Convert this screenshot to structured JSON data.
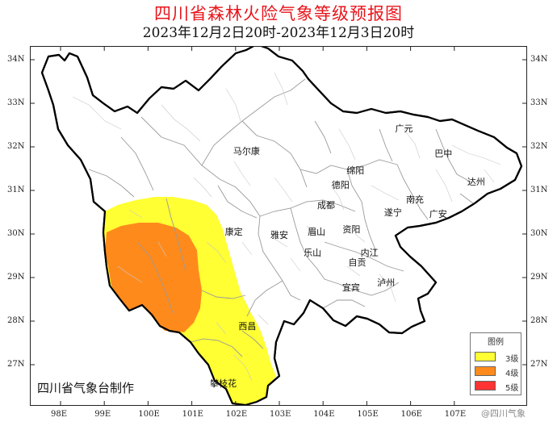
{
  "title": "四川省森林火险气象等级预报图",
  "subtitle": "2023年12月2日20时-2023年12月3日20时",
  "credit": "四川省气象台制作",
  "watermark": "@四川气象",
  "legend": {
    "title": "图例",
    "items": [
      {
        "label": "3级",
        "color": "#ffff33"
      },
      {
        "label": "4级",
        "color": "#ff8a1c"
      },
      {
        "label": "5级",
        "color": "#ff3333"
      }
    ]
  },
  "axes": {
    "lat_labels": [
      "34N",
      "33N",
      "32N",
      "31N",
      "30N",
      "29N",
      "28N",
      "27N"
    ],
    "lon_labels": [
      "98E",
      "99E",
      "100E",
      "101E",
      "102E",
      "103E",
      "104E",
      "105E",
      "106E",
      "107E"
    ]
  },
  "cities": [
    {
      "name": "马尔康",
      "lon": 102.25,
      "lat": 31.9
    },
    {
      "name": "广元",
      "lon": 105.85,
      "lat": 32.43
    },
    {
      "name": "巴中",
      "lon": 106.75,
      "lat": 31.85
    },
    {
      "name": "绵阳",
      "lon": 104.74,
      "lat": 31.46
    },
    {
      "name": "德阳",
      "lon": 104.4,
      "lat": 31.13
    },
    {
      "name": "达州",
      "lon": 107.5,
      "lat": 31.2
    },
    {
      "name": "南充",
      "lon": 106.1,
      "lat": 30.8
    },
    {
      "name": "成都",
      "lon": 104.07,
      "lat": 30.67
    },
    {
      "name": "遂宁",
      "lon": 105.6,
      "lat": 30.5
    },
    {
      "name": "广安",
      "lon": 106.63,
      "lat": 30.46
    },
    {
      "name": "康定",
      "lon": 101.96,
      "lat": 30.05
    },
    {
      "name": "雅安",
      "lon": 103.0,
      "lat": 29.98
    },
    {
      "name": "眉山",
      "lon": 103.85,
      "lat": 30.05
    },
    {
      "name": "资阳",
      "lon": 104.65,
      "lat": 30.12
    },
    {
      "name": "乐山",
      "lon": 103.76,
      "lat": 29.58
    },
    {
      "name": "自贡",
      "lon": 104.78,
      "lat": 29.35
    },
    {
      "name": "内江",
      "lon": 105.06,
      "lat": 29.58
    },
    {
      "name": "宜宾",
      "lon": 104.64,
      "lat": 28.77
    },
    {
      "name": "泸州",
      "lon": 105.44,
      "lat": 28.89
    },
    {
      "name": "西昌",
      "lon": 102.27,
      "lat": 27.89
    },
    {
      "name": "攀枝花",
      "lon": 101.72,
      "lat": 26.58
    }
  ]
}
